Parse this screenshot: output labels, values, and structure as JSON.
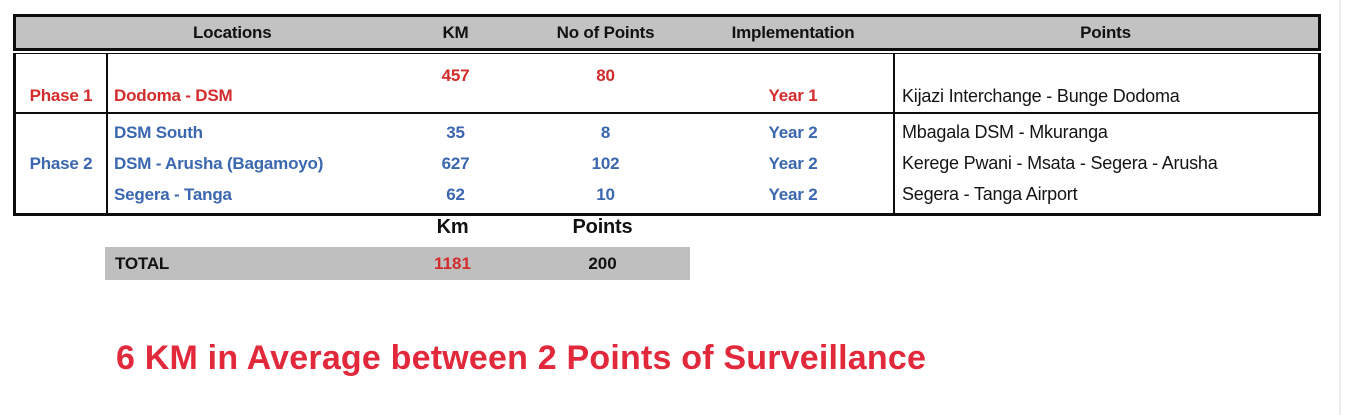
{
  "table": {
    "headers": [
      "",
      "Locations",
      "KM",
      "No of Points",
      "Implementation",
      "Points"
    ],
    "rows": [
      {
        "phase": "Phase 1",
        "locations": [
          "Dodoma - DSM"
        ],
        "km": [
          "457"
        ],
        "no_of_points": [
          "80"
        ],
        "implementation": [
          "Year 1"
        ],
        "points": [
          "Kijazi Interchange - Bunge Dodoma"
        ]
      },
      {
        "phase": "Phase 2",
        "locations": [
          "DSM South",
          "DSM - Arusha (Bagamoyo)",
          "Segera - Tanga"
        ],
        "km": [
          "35",
          "627",
          "62"
        ],
        "no_of_points": [
          "8",
          "102",
          "10"
        ],
        "implementation": [
          "Year 2",
          "Year 2",
          "Year 2"
        ],
        "points": [
          "Mbagala DSM - Mkuranga",
          "Kerege Pwani - Msata - Segera - Arusha",
          "Segera - Tanga Airport"
        ]
      }
    ]
  },
  "summary": {
    "km_label": "Km",
    "points_label": "Points",
    "total_label": "TOTAL",
    "total_km": "1181",
    "total_points": "200"
  },
  "caption": "6 KM in Average between 2 Points of Surveillance",
  "colors": {
    "header_gray": "#c2c2c2",
    "total_band_gray": "#bfbfbf",
    "phase1_red": "#d32c2c",
    "phase2_blue": "#3a67af",
    "caption_red": "#e2293c",
    "border_black": "#0d0d0d"
  }
}
